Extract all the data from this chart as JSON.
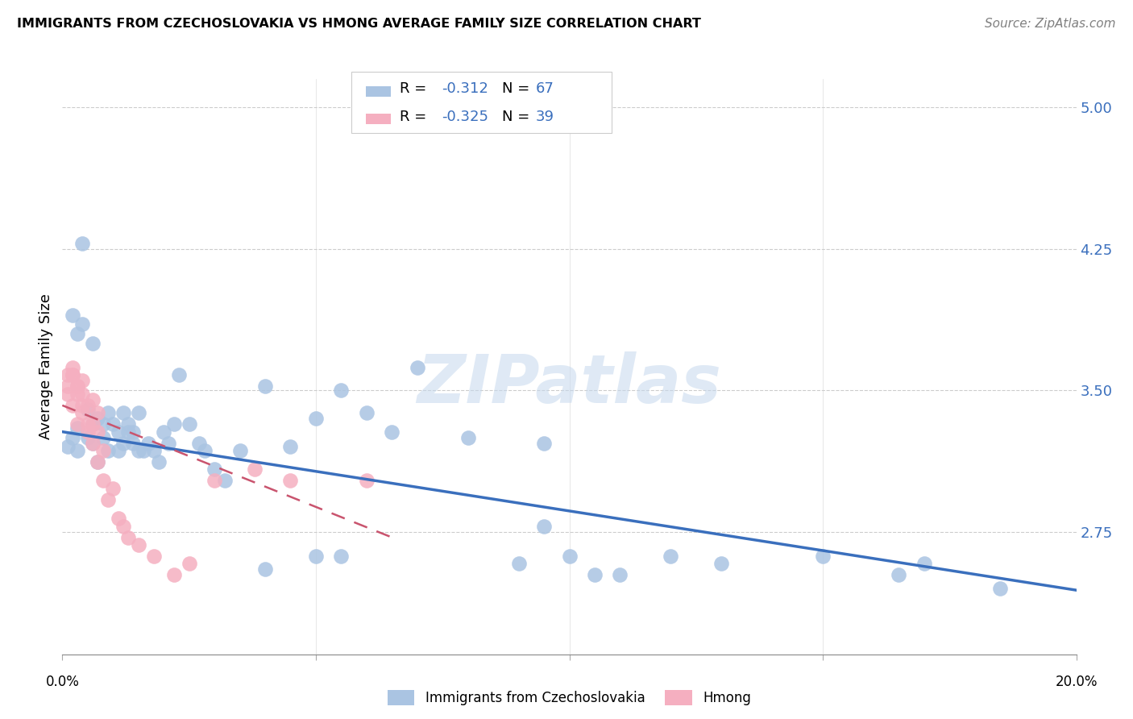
{
  "title": "IMMIGRANTS FROM CZECHOSLOVAKIA VS HMONG AVERAGE FAMILY SIZE CORRELATION CHART",
  "source": "Source: ZipAtlas.com",
  "ylabel": "Average Family Size",
  "ytick_right_vals": [
    2.75,
    3.5,
    4.25,
    5.0
  ],
  "xmin": 0.0,
  "xmax": 0.2,
  "ymin": 2.1,
  "ymax": 5.15,
  "blue_color": "#aac4e2",
  "pink_color": "#f5afc0",
  "blue_line_color": "#3a6fbd",
  "pink_line_color": "#c9546e",
  "legend_label_blue": "Immigrants from Czechoslovakia",
  "legend_label_pink": "Hmong",
  "watermark": "ZIPatlas",
  "blue_line_x0": 0.0,
  "blue_line_x1": 0.2,
  "blue_line_y0": 3.28,
  "blue_line_y1": 2.44,
  "pink_line_x0": 0.0,
  "pink_line_x1": 0.065,
  "pink_line_y0": 3.42,
  "pink_line_y1": 2.72,
  "blue_scatter_x": [
    0.001,
    0.002,
    0.003,
    0.003,
    0.004,
    0.005,
    0.005,
    0.006,
    0.006,
    0.007,
    0.007,
    0.008,
    0.008,
    0.009,
    0.009,
    0.01,
    0.011,
    0.011,
    0.012,
    0.012,
    0.013,
    0.014,
    0.014,
    0.015,
    0.015,
    0.016,
    0.017,
    0.018,
    0.019,
    0.02,
    0.021,
    0.022,
    0.023,
    0.025,
    0.027,
    0.028,
    0.03,
    0.032,
    0.035,
    0.04,
    0.045,
    0.05,
    0.055,
    0.06,
    0.065,
    0.07,
    0.08,
    0.09,
    0.095,
    0.1,
    0.105,
    0.11,
    0.12,
    0.13,
    0.15,
    0.165,
    0.17,
    0.185,
    0.002,
    0.003,
    0.004,
    0.006,
    0.013,
    0.05,
    0.055,
    0.095,
    0.04
  ],
  "blue_scatter_y": [
    3.2,
    3.25,
    3.3,
    3.18,
    4.28,
    3.25,
    3.4,
    3.22,
    3.32,
    3.35,
    3.12,
    3.25,
    3.32,
    3.38,
    3.18,
    3.32,
    3.28,
    3.18,
    3.22,
    3.38,
    3.28,
    3.22,
    3.28,
    3.18,
    3.38,
    3.18,
    3.22,
    3.18,
    3.12,
    3.28,
    3.22,
    3.32,
    3.58,
    3.32,
    3.22,
    3.18,
    3.08,
    3.02,
    3.18,
    3.52,
    3.2,
    3.35,
    3.5,
    3.38,
    3.28,
    3.62,
    3.25,
    2.58,
    3.22,
    2.62,
    2.52,
    2.52,
    2.62,
    2.58,
    2.62,
    2.52,
    2.58,
    2.45,
    3.9,
    3.8,
    3.85,
    3.75,
    3.32,
    2.62,
    2.62,
    2.78,
    2.55
  ],
  "pink_scatter_x": [
    0.001,
    0.001,
    0.001,
    0.002,
    0.002,
    0.002,
    0.003,
    0.003,
    0.003,
    0.004,
    0.004,
    0.004,
    0.005,
    0.005,
    0.005,
    0.006,
    0.006,
    0.007,
    0.007,
    0.008,
    0.008,
    0.009,
    0.01,
    0.011,
    0.012,
    0.013,
    0.015,
    0.018,
    0.022,
    0.025,
    0.03,
    0.038,
    0.045,
    0.06,
    0.002,
    0.003,
    0.004,
    0.006,
    0.007
  ],
  "pink_scatter_y": [
    3.58,
    3.52,
    3.48,
    3.62,
    3.58,
    3.42,
    3.52,
    3.48,
    3.32,
    3.48,
    3.42,
    3.38,
    3.42,
    3.32,
    3.28,
    3.32,
    3.22,
    3.28,
    3.12,
    3.18,
    3.02,
    2.92,
    2.98,
    2.82,
    2.78,
    2.72,
    2.68,
    2.62,
    2.52,
    2.58,
    3.02,
    3.08,
    3.02,
    3.02,
    3.58,
    3.52,
    3.55,
    3.45,
    3.38
  ]
}
